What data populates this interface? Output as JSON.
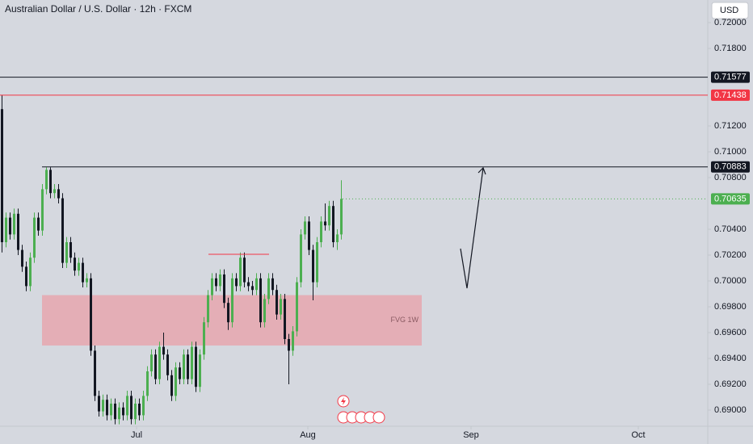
{
  "chart_data": {
    "type": "candlestick",
    "title": "Australian Dollar / U.S. Dollar · 12h · FXCM",
    "currency": "USD",
    "up_color": "#4caf50",
    "down_color": "#131722",
    "xlim": [
      -0.4,
      174.8
    ],
    "xticks": [
      {
        "value": 33.4,
        "label": "Jul"
      },
      {
        "value": 75.8,
        "label": "Aug"
      },
      {
        "value": 116.2,
        "label": "Sep"
      },
      {
        "value": 157.6,
        "label": "Oct"
      }
    ],
    "ylim": [
      0.68875,
      0.72175
    ],
    "yticks": [
      {
        "value": 0.72,
        "label": "0.72000"
      },
      {
        "value": 0.718,
        "label": "0.71800"
      },
      {
        "value": 0.712,
        "label": "0.71200"
      },
      {
        "value": 0.71,
        "label": "0.71000"
      },
      {
        "value": 0.708,
        "label": "0.70800"
      },
      {
        "value": 0.704,
        "label": "0.70400"
      },
      {
        "value": 0.702,
        "label": "0.70200"
      },
      {
        "value": 0.7,
        "label": "0.70000"
      },
      {
        "value": 0.698,
        "label": "0.69800"
      },
      {
        "value": 0.696,
        "label": "0.69600"
      },
      {
        "value": 0.694,
        "label": "0.69400"
      },
      {
        "value": 0.692,
        "label": "0.69200"
      },
      {
        "value": 0.69,
        "label": "0.69000"
      }
    ],
    "levels": [
      {
        "value": 0.71577,
        "color": "#131722"
      },
      {
        "value": 0.71438,
        "color": "#f23645"
      },
      {
        "value": 0.70883,
        "color": "#131722"
      },
      {
        "value": 0.70635,
        "color": "#4caf50",
        "dashed": true
      }
    ],
    "zone": {
      "label": "FVG 1W",
      "from": 0.695,
      "to": 0.6989,
      "color": "#e8a0a8"
    },
    "marker_line": {
      "value": 0.70206,
      "color": "#f23645"
    },
    "open": [
      0.7133,
      0.703,
      0.7049,
      0.7036,
      0.7052,
      0.7024,
      0.7011,
      0.6996,
      0.7018,
      0.7049,
      0.7039,
      0.7071,
      0.7086,
      0.7068,
      0.7071,
      0.7064,
      0.7014,
      0.703,
      0.7018,
      0.7008,
      0.7014,
      0.6999,
      0.7002,
      0.6946,
      0.6911,
      0.6899,
      0.6908,
      0.6896,
      0.6905,
      0.6893,
      0.6902,
      0.6896,
      0.6911,
      0.6893,
      0.6905,
      0.6896,
      0.6911,
      0.693,
      0.6943,
      0.6924,
      0.6949,
      0.6943,
      0.6927,
      0.6911,
      0.6933,
      0.6924,
      0.6943,
      0.6924,
      0.6949,
      0.6918,
      0.6943,
      0.6968,
      0.6989,
      0.7002,
      0.6996,
      0.7005,
      0.6983,
      0.6968,
      0.7002,
      0.6996,
      0.7018,
      0.6999,
      0.6996,
      0.6993,
      0.7002,
      0.6968,
      0.6986,
      0.7002,
      0.6993,
      0.6974,
      0.6986,
      0.6955,
      0.6946,
      0.6961,
      0.6999,
      0.7036,
      0.7046,
      0.7024,
      0.6999,
      0.703,
      0.7046,
      0.7043,
      0.7058,
      0.703,
      0.7036
    ],
    "high": [
      0.7144,
      0.7053,
      0.7053,
      0.7056,
      0.7056,
      0.7028,
      0.7015,
      0.7022,
      0.7053,
      0.7053,
      0.7075,
      0.7088,
      0.7088,
      0.7075,
      0.7075,
      0.7068,
      0.7034,
      0.7034,
      0.7022,
      0.7018,
      0.7018,
      0.7006,
      0.7006,
      0.695,
      0.6915,
      0.6912,
      0.6912,
      0.6909,
      0.6909,
      0.6906,
      0.6906,
      0.6915,
      0.6915,
      0.6909,
      0.6909,
      0.6915,
      0.6934,
      0.6947,
      0.6947,
      0.6953,
      0.696,
      0.6947,
      0.6931,
      0.6937,
      0.6937,
      0.6947,
      0.6947,
      0.6953,
      0.6953,
      0.6947,
      0.6972,
      0.6993,
      0.7006,
      0.7006,
      0.7009,
      0.7009,
      0.6987,
      0.7006,
      0.7006,
      0.7022,
      0.7022,
      0.7003,
      0.7,
      0.7006,
      0.7006,
      0.699,
      0.7006,
      0.7006,
      0.6997,
      0.699,
      0.699,
      0.6959,
      0.6965,
      0.7003,
      0.704,
      0.705,
      0.705,
      0.7028,
      0.7034,
      0.705,
      0.706,
      0.7062,
      0.7062,
      0.704,
      0.7078
    ],
    "low": [
      0.7022,
      0.7026,
      0.7032,
      0.7032,
      0.702,
      0.7007,
      0.6992,
      0.6992,
      0.7014,
      0.7035,
      0.7035,
      0.7067,
      0.7064,
      0.7064,
      0.706,
      0.701,
      0.701,
      0.7014,
      0.7004,
      0.7004,
      0.6995,
      0.6995,
      0.6942,
      0.6907,
      0.6895,
      0.6895,
      0.6892,
      0.6892,
      0.6889,
      0.6889,
      0.6892,
      0.6892,
      0.6889,
      0.6889,
      0.6892,
      0.6892,
      0.6907,
      0.6926,
      0.692,
      0.692,
      0.6939,
      0.6923,
      0.6907,
      0.6907,
      0.692,
      0.692,
      0.692,
      0.692,
      0.6914,
      0.6914,
      0.6939,
      0.6964,
      0.6985,
      0.6992,
      0.6992,
      0.6979,
      0.6962,
      0.6964,
      0.6992,
      0.6992,
      0.6995,
      0.6992,
      0.6989,
      0.6989,
      0.6964,
      0.6964,
      0.6982,
      0.6989,
      0.697,
      0.697,
      0.6951,
      0.692,
      0.6942,
      0.6957,
      0.6995,
      0.7032,
      0.702,
      0.6985,
      0.6995,
      0.7026,
      0.7039,
      0.7039,
      0.7026,
      0.7024,
      0.7032
    ],
    "close": [
      0.703,
      0.7049,
      0.7036,
      0.7052,
      0.7024,
      0.7011,
      0.6996,
      0.7018,
      0.7049,
      0.7039,
      0.7071,
      0.7086,
      0.7068,
      0.7071,
      0.7064,
      0.7014,
      0.703,
      0.7018,
      0.7008,
      0.7014,
      0.6999,
      0.7002,
      0.6946,
      0.6911,
      0.6899,
      0.6908,
      0.6896,
      0.6905,
      0.6893,
      0.6902,
      0.6896,
      0.6911,
      0.6893,
      0.6905,
      0.6896,
      0.6911,
      0.693,
      0.6943,
      0.6924,
      0.6949,
      0.6943,
      0.6927,
      0.6911,
      0.6933,
      0.6924,
      0.6943,
      0.6924,
      0.6949,
      0.6918,
      0.6943,
      0.6968,
      0.6989,
      0.7002,
      0.6996,
      0.7005,
      0.6983,
      0.6968,
      0.7002,
      0.6996,
      0.7018,
      0.6999,
      0.6996,
      0.6993,
      0.7002,
      0.6968,
      0.6986,
      0.7002,
      0.6993,
      0.6974,
      0.6986,
      0.6955,
      0.6946,
      0.6961,
      0.6999,
      0.7036,
      0.7046,
      0.7024,
      0.6999,
      0.703,
      0.7046,
      0.7043,
      0.7058,
      0.703,
      0.7036,
      0.70635
    ]
  }
}
